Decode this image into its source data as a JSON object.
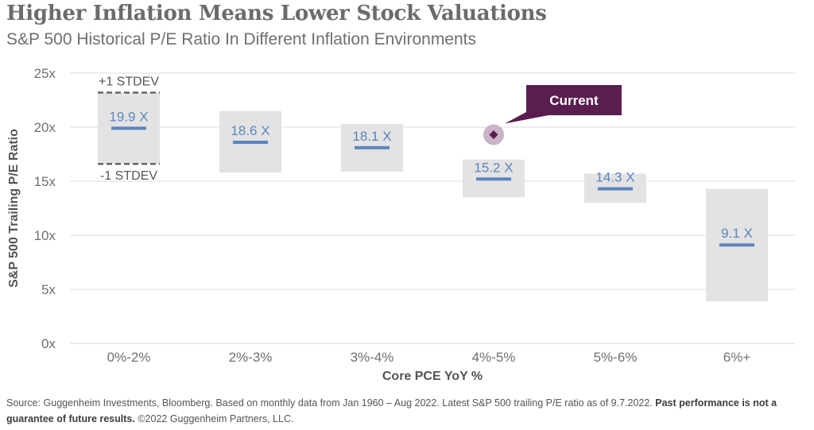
{
  "title": "Higher Inflation Means Lower Stock Valuations",
  "subtitle": "S&P 500 Historical P/E Ratio In Different Inflation Environments",
  "footer": {
    "source": "Source: Guggenheim Investments, Bloomberg. Based on monthly data from Jan 1960 – Aug 2022. Latest S&P 500 trailing P/E ratio as of 9.7.2022.",
    "bold": "Past performance is not a guarantee of future results.",
    "copyright": "©2022 Guggenheim Partners, LLC."
  },
  "colors": {
    "band": "#e3e3e3",
    "median": "#5b85c0",
    "median_label": "#5b85c0",
    "current": "#5a1e4e",
    "current_halo": "#c9b3c6",
    "grid": "#dcdcdc",
    "axis_text": "#6f6f6f",
    "stdev_line": "#666666"
  },
  "chart_data": {
    "type": "range-bar",
    "xlabel": "Core PCE YoY %",
    "ylabel": "S&P 500 Trailing P/E Ratio",
    "ylim": [
      0,
      25
    ],
    "yticks": [
      {
        "value": 0,
        "label": "0x"
      },
      {
        "value": 5,
        "label": "5x"
      },
      {
        "value": 10,
        "label": "10x"
      },
      {
        "value": 15,
        "label": "15x"
      },
      {
        "value": 20,
        "label": "20x"
      },
      {
        "value": 25,
        "label": "25x"
      }
    ],
    "grid": true,
    "categories": [
      "0%-2%",
      "2%-3%",
      "3%-4%",
      "4%-5%",
      "5%-6%",
      "6%+"
    ],
    "series": [
      {
        "median": [
          19.9,
          18.6,
          18.1,
          15.2,
          14.3,
          9.1
        ],
        "median_labels": [
          "19.9 X",
          "18.6 X",
          "18.1 X",
          "15.2 X",
          "14.3 X",
          "9.1 X"
        ],
        "plus_1_stdev": [
          23.2,
          21.5,
          20.3,
          17.0,
          15.7,
          14.3
        ],
        "minus_1_stdev": [
          16.6,
          15.8,
          15.9,
          13.5,
          13.0,
          3.9
        ]
      }
    ],
    "annotations": {
      "plus_stdev_label": "+1 STDEV",
      "minus_stdev_label": "-1 STDEV",
      "current": {
        "label": "Current",
        "category": "4%-5%",
        "value": 19.3
      }
    }
  }
}
